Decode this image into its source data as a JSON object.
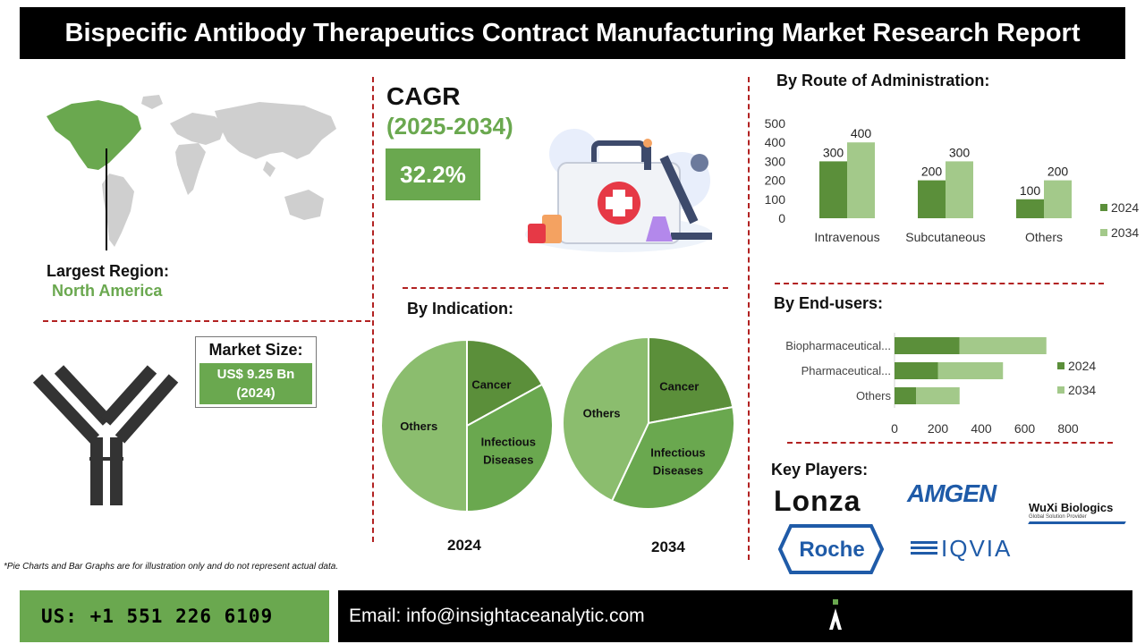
{
  "title": "Bispecific Antibody Therapeutics Contract Manufacturing Market Research Report",
  "region": {
    "label": "Largest Region:",
    "value": "North America"
  },
  "market_size": {
    "label": "Market Size:",
    "value_line1": "US$ 9.25 Bn",
    "value_line2": "(2024)"
  },
  "cagr": {
    "label": "CAGR",
    "period": "(2025-2034)",
    "value": "32.2%"
  },
  "disclaimer": "*Pie Charts and Bar Graphs are for illustration only and do not represent actual data.",
  "key_players": {
    "label": "Key Players:",
    "lonza": "Lonza",
    "amgen": "AMGEN",
    "wuxi": "WuXi Biologics",
    "wuxi_sub": "Global Solution Provider",
    "roche": "Roche",
    "iqvia": "IQVIA"
  },
  "contact": {
    "phone": "US: +1 551 226 6109",
    "email": "Email: info@insightaceanalytic.com"
  },
  "colors": {
    "dark_green": "#5b8f3a",
    "light_green": "#a3c98a",
    "mid_green": "#6aa84f",
    "accent_red": "#b22222"
  },
  "chart_data": [
    {
      "type": "bar",
      "title": "By Route of Administration:",
      "categories": [
        "Intravenous",
        "Subcutaneous",
        "Others"
      ],
      "series": [
        {
          "name": "2024",
          "values": [
            300,
            200,
            100
          ]
        },
        {
          "name": "2034",
          "values": [
            400,
            300,
            200
          ]
        }
      ],
      "ylim": [
        0,
        500
      ],
      "yticks": [
        0,
        100,
        200,
        300,
        400,
        500
      ],
      "legend": "right",
      "grid": false
    },
    {
      "type": "bar",
      "orientation": "horizontal",
      "stacked": true,
      "title": "By End-users:",
      "categories": [
        "Biopharmaceutical...",
        "Pharmaceutical...",
        "Others"
      ],
      "series": [
        {
          "name": "2024",
          "values": [
            300,
            200,
            100
          ]
        },
        {
          "name": "2034",
          "values": [
            400,
            300,
            200
          ]
        }
      ],
      "xlim": [
        0,
        800
      ],
      "xticks": [
        0,
        200,
        400,
        600,
        800
      ],
      "legend": "right",
      "grid": false
    },
    {
      "type": "pie",
      "title": "By Indication:",
      "label": "2024",
      "slices": [
        {
          "name": "Cancer",
          "value": 17
        },
        {
          "name": "Infectious Diseases",
          "value": 33
        },
        {
          "name": "Others",
          "value": 50
        }
      ]
    },
    {
      "type": "pie",
      "label": "2034",
      "slices": [
        {
          "name": "Cancer",
          "value": 22
        },
        {
          "name": "Infectious Diseases",
          "value": 35
        },
        {
          "name": "Others",
          "value": 43
        }
      ]
    }
  ]
}
